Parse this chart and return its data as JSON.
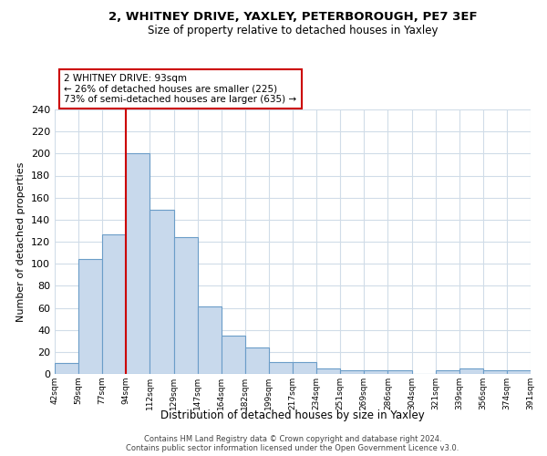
{
  "title1": "2, WHITNEY DRIVE, YAXLEY, PETERBOROUGH, PE7 3EF",
  "title2": "Size of property relative to detached houses in Yaxley",
  "xlabel": "Distribution of detached houses by size in Yaxley",
  "ylabel": "Number of detached properties",
  "bar_labels": [
    "42sqm",
    "59sqm",
    "77sqm",
    "94sqm",
    "112sqm",
    "129sqm",
    "147sqm",
    "164sqm",
    "182sqm",
    "199sqm",
    "217sqm",
    "234sqm",
    "251sqm",
    "269sqm",
    "286sqm",
    "304sqm",
    "321sqm",
    "339sqm",
    "356sqm",
    "374sqm",
    "391sqm"
  ],
  "bar_values": [
    10,
    104,
    127,
    200,
    149,
    124,
    61,
    35,
    24,
    11,
    11,
    5,
    3,
    3,
    3,
    0,
    3,
    5,
    3,
    3
  ],
  "bar_color": "#c8d9ec",
  "bar_edge_color": "#6b9dc8",
  "vline_x": 3,
  "vline_color": "#cc0000",
  "annotation_title": "2 WHITNEY DRIVE: 93sqm",
  "annotation_line1": "← 26% of detached houses are smaller (225)",
  "annotation_line2": "73% of semi-detached houses are larger (635) →",
  "annotation_box_color": "#ffffff",
  "annotation_box_edge": "#cc0000",
  "ylim": [
    0,
    240
  ],
  "yticks": [
    0,
    20,
    40,
    60,
    80,
    100,
    120,
    140,
    160,
    180,
    200,
    220,
    240
  ],
  "footer1": "Contains HM Land Registry data © Crown copyright and database right 2024.",
  "footer2": "Contains public sector information licensed under the Open Government Licence v3.0.",
  "background_color": "#ffffff",
  "grid_color": "#d0dce8"
}
